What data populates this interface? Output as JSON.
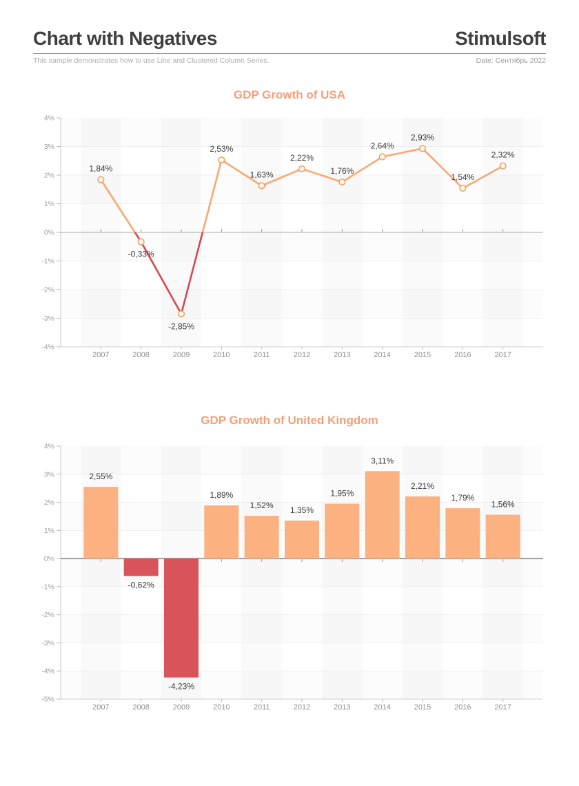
{
  "header": {
    "title": "Chart with Negatives",
    "brand": "Stimulsoft",
    "subtitle": "This sample demonstrates how to use Line and Clustered Column Series.",
    "date_label": "Date: Сентябрь 2022"
  },
  "colors": {
    "accent_title": "#F69E77",
    "bar_positive": "#FCB181",
    "bar_negative": "#D9545A",
    "line_positive": "#F9A873",
    "line_negative": "#D7484F",
    "marker_fill": "#FFF7E8",
    "marker_stroke": "#EE9D62",
    "data_label": "#3A3A3A",
    "axis_text": "#9C9C9C",
    "x_text": "#8F8F8F",
    "zero_line_light": "#ABABAB",
    "zero_line_dark": "#9C9C9C",
    "axis_line": "#C6C6C6",
    "bottom_line": "#CFCFCF",
    "tick": "#B8B8B8",
    "grid": "#EFEFEF"
  },
  "chart_data": [
    {
      "type": "line",
      "title": "GDP Growth of USA",
      "categories": [
        "2007",
        "2008",
        "2009",
        "2010",
        "2011",
        "2012",
        "2013",
        "2014",
        "2015",
        "2016",
        "2017"
      ],
      "values": [
        1.84,
        -0.33,
        -2.85,
        2.53,
        1.63,
        2.22,
        1.76,
        2.64,
        2.93,
        1.54,
        2.32
      ],
      "labels": [
        "1,84%",
        "-0,33%",
        "-2,85%",
        "2,53%",
        "1,63%",
        "2,22%",
        "1,76%",
        "2,64%",
        "2,93%",
        "1,54%",
        "2,32%"
      ],
      "ylim": [
        -4,
        4
      ],
      "ytick_step": 1,
      "yticks": [
        "4%",
        "3%",
        "2%",
        "1%",
        "0%",
        "-1%",
        "-2%",
        "-3%",
        "-4%"
      ],
      "xlabel": "",
      "ylabel": "",
      "grid": true,
      "legend": "none"
    },
    {
      "type": "bar",
      "title": "GDP Growth of United Kingdom",
      "categories": [
        "2007",
        "2008",
        "2009",
        "2010",
        "2011",
        "2012",
        "2013",
        "2014",
        "2015",
        "2016",
        "2017"
      ],
      "values": [
        2.55,
        -0.62,
        -4.23,
        1.89,
        1.52,
        1.35,
        1.95,
        3.11,
        2.21,
        1.79,
        1.56
      ],
      "labels": [
        "2,55%",
        "-0,62%",
        "-4,23%",
        "1,89%",
        "1,52%",
        "1,35%",
        "1,95%",
        "3,11%",
        "2,21%",
        "1,79%",
        "1,56%"
      ],
      "ylim": [
        -5,
        4
      ],
      "ytick_step": 1,
      "yticks": [
        "4%",
        "3%",
        "2%",
        "1%",
        "0%",
        "-1%",
        "-2%",
        "-3%",
        "-4%",
        "-5%"
      ],
      "xlabel": "",
      "ylabel": "",
      "grid": true,
      "legend": "none"
    }
  ]
}
